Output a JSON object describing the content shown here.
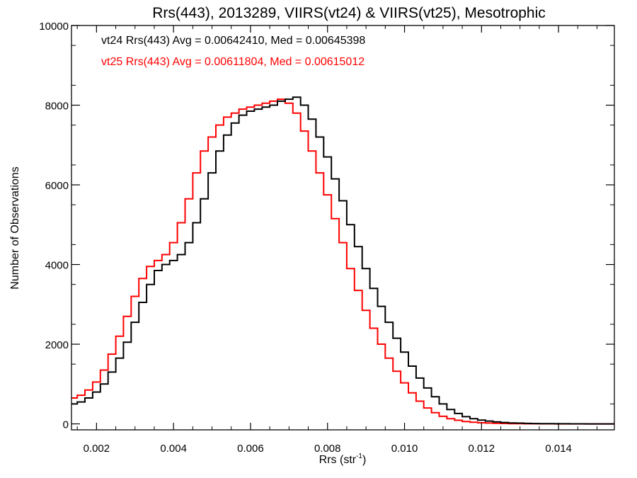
{
  "chart_data": {
    "type": "line",
    "title": "Rrs(443), 2013289, VIIRS(vt24) & VIIRS(vt25), Mesotrophic",
    "xlabel_main": "Rrs (str",
    "xlabel_sup": "-1",
    "xlabel_end": ")",
    "ylabel": "Number of Observations",
    "xlim": [
      0.00135,
      0.01545
    ],
    "ylim": [
      -150,
      10000
    ],
    "x_ticks": [
      0.002,
      0.004,
      0.006,
      0.008,
      0.01,
      0.012,
      0.014
    ],
    "x_tick_labels": [
      "0.002",
      "0.004",
      "0.006",
      "0.008",
      "0.010",
      "0.012",
      "0.014"
    ],
    "y_ticks": [
      0,
      2000,
      4000,
      6000,
      8000,
      10000
    ],
    "y_tick_labels": [
      "0",
      "2000",
      "4000",
      "6000",
      "8000",
      "10000"
    ],
    "annotations": [
      {
        "text": "vt24 Rrs(443) Avg = 0.00642410, Med = 0.00645398",
        "color": "#000000"
      },
      {
        "text": "vt25 Rrs(443) Avg = 0.00611804, Med = 0.00615012",
        "color": "#ff0000"
      }
    ],
    "series": [
      {
        "color": "#000000",
        "x": [
          0.00135,
          0.0015,
          0.0017,
          0.0019,
          0.0021,
          0.0023,
          0.0025,
          0.0027,
          0.0029,
          0.0031,
          0.0033,
          0.0035,
          0.0037,
          0.0039,
          0.0041,
          0.0043,
          0.0045,
          0.0047,
          0.0049,
          0.0051,
          0.0053,
          0.0055,
          0.0057,
          0.0059,
          0.0061,
          0.0063,
          0.0065,
          0.0067,
          0.0069,
          0.0071,
          0.0073,
          0.0075,
          0.0077,
          0.0079,
          0.0081,
          0.0083,
          0.0085,
          0.0087,
          0.0089,
          0.0091,
          0.0093,
          0.0095,
          0.0097,
          0.0099,
          0.0101,
          0.0103,
          0.0105,
          0.0107,
          0.0109,
          0.0111,
          0.0113,
          0.0115,
          0.0117,
          0.0119,
          0.0121,
          0.0123,
          0.0125,
          0.0127,
          0.0129,
          0.0131,
          0.0133,
          0.0135,
          0.0137,
          0.0139,
          0.0141,
          0.0143,
          0.0145,
          0.0147,
          0.0149,
          0.0151,
          0.0153,
          0.01545
        ],
        "y": [
          500,
          550,
          650,
          800,
          1000,
          1300,
          1650,
          2050,
          2550,
          3050,
          3500,
          3850,
          4000,
          4100,
          4250,
          4550,
          5050,
          5650,
          6300,
          6850,
          7250,
          7550,
          7750,
          7850,
          7900,
          7950,
          8000,
          8100,
          8150,
          8200,
          8000,
          7650,
          7200,
          6700,
          6150,
          5600,
          5000,
          4450,
          3900,
          3400,
          2950,
          2550,
          2150,
          1800,
          1450,
          1150,
          900,
          680,
          500,
          360,
          260,
          180,
          130,
          95,
          70,
          50,
          35,
          25,
          18,
          12,
          8,
          6,
          4,
          3,
          2,
          1,
          1,
          0,
          0,
          0,
          0,
          0
        ]
      },
      {
        "color": "#ff0000",
        "x": [
          0.00135,
          0.0015,
          0.0017,
          0.0019,
          0.0021,
          0.0023,
          0.0025,
          0.0027,
          0.0029,
          0.0031,
          0.0033,
          0.0035,
          0.0037,
          0.0039,
          0.0041,
          0.0043,
          0.0045,
          0.0047,
          0.0049,
          0.0051,
          0.0053,
          0.0055,
          0.0057,
          0.0059,
          0.0061,
          0.0063,
          0.0065,
          0.0067,
          0.0069,
          0.0071,
          0.0073,
          0.0075,
          0.0077,
          0.0079,
          0.0081,
          0.0083,
          0.0085,
          0.0087,
          0.0089,
          0.0091,
          0.0093,
          0.0095,
          0.0097,
          0.0099,
          0.0101,
          0.0103,
          0.0105,
          0.0107,
          0.0109,
          0.0111,
          0.0113,
          0.0115,
          0.0117,
          0.0119,
          0.0121,
          0.0123,
          0.0125,
          0.0127,
          0.0129,
          0.0131,
          0.0133,
          0.0135,
          0.0137,
          0.0139,
          0.0141,
          0.0143,
          0.0145,
          0.0147,
          0.0149,
          0.0151,
          0.0153,
          0.01545
        ],
        "y": [
          650,
          720,
          850,
          1050,
          1350,
          1750,
          2200,
          2700,
          3200,
          3650,
          3950,
          4100,
          4250,
          4550,
          5050,
          5650,
          6300,
          6850,
          7200,
          7500,
          7700,
          7800,
          7900,
          7950,
          8000,
          8050,
          8100,
          8150,
          8050,
          7800,
          7350,
          6850,
          6300,
          5750,
          5150,
          4550,
          3900,
          3350,
          2850,
          2400,
          2000,
          1650,
          1320,
          1030,
          780,
          570,
          400,
          280,
          190,
          130,
          90,
          60,
          40,
          28,
          20,
          14,
          10,
          7,
          5,
          3,
          2,
          1,
          1,
          0,
          0,
          0,
          0,
          0,
          0,
          0,
          0,
          0
        ]
      }
    ]
  }
}
